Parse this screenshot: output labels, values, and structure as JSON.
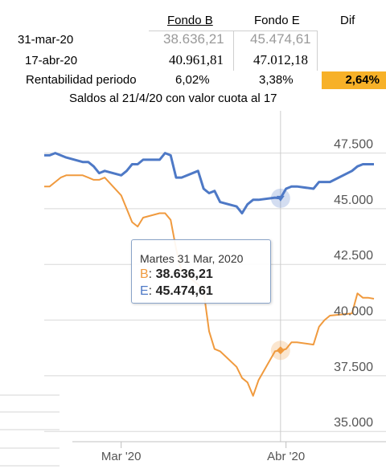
{
  "table": {
    "headers": {
      "fondo_b": "Fondo B",
      "fondo_e": "Fondo E",
      "dif": "Dif"
    },
    "rows": [
      {
        "label": "31-mar-20",
        "fondo_b": "38.636,21",
        "fondo_e": "45.474,61"
      },
      {
        "label": "17-abr-20",
        "fondo_b": "40.961,81",
        "fondo_e": "47.012,18"
      },
      {
        "label": "Rentabilidad periodo",
        "fondo_b": "6,02%",
        "fondo_e": "3,38%",
        "dif": "2,64%"
      }
    ],
    "note": "Saldos al 21/4/20 con valor cuota al 17",
    "colors": {
      "dif_highlight": "#f7b128"
    }
  },
  "tooltip": {
    "date": "Martes 31 Mar, 2020",
    "b_label": "B",
    "b_value": "38.636,21",
    "e_label": "E",
    "e_value": "45.474,61"
  },
  "chart_data": {
    "type": "line",
    "x": [
      "2020-02-17",
      "2020-02-18",
      "2020-02-19",
      "2020-02-20",
      "2020-02-21",
      "2020-02-24",
      "2020-02-25",
      "2020-02-26",
      "2020-02-27",
      "2020-02-28",
      "2020-03-02",
      "2020-03-03",
      "2020-03-04",
      "2020-03-05",
      "2020-03-06",
      "2020-03-09",
      "2020-03-10",
      "2020-03-11",
      "2020-03-12",
      "2020-03-13",
      "2020-03-16",
      "2020-03-17",
      "2020-03-18",
      "2020-03-19",
      "2020-03-20",
      "2020-03-23",
      "2020-03-24",
      "2020-03-25",
      "2020-03-26",
      "2020-03-27",
      "2020-03-30",
      "2020-03-31",
      "2020-04-01",
      "2020-04-02",
      "2020-04-03",
      "2020-04-06",
      "2020-04-07",
      "2020-04-08",
      "2020-04-09",
      "2020-04-13",
      "2020-04-14",
      "2020-04-15",
      "2020-04-16",
      "2020-04-17"
    ],
    "series": [
      {
        "name": "E",
        "color": "#4e79c6",
        "values": [
          47.4,
          47.4,
          47.5,
          47.4,
          47.3,
          47.1,
          47.1,
          46.9,
          46.6,
          46.7,
          46.5,
          46.7,
          47.0,
          47.0,
          47.2,
          47.2,
          47.5,
          47.4,
          46.4,
          46.4,
          46.7,
          45.9,
          45.7,
          45.8,
          45.3,
          45.1,
          44.8,
          45.2,
          45.4,
          45.4,
          45.5,
          45.47,
          45.9,
          46.0,
          46.0,
          45.9,
          46.2,
          46.2,
          46.2,
          46.7,
          46.9,
          47.0,
          47.0,
          47.0
        ]
      },
      {
        "name": "B",
        "color": "#f09a3e",
        "values": [
          46.0,
          46.0,
          46.2,
          46.4,
          46.5,
          46.5,
          46.4,
          46.3,
          46.3,
          46.4,
          45.6,
          45.0,
          44.4,
          44.2,
          44.6,
          44.8,
          44.8,
          44.5,
          43.2,
          42.2,
          41.6,
          41.3,
          39.5,
          38.7,
          38.6,
          37.9,
          37.4,
          37.2,
          36.6,
          37.3,
          38.6,
          38.64,
          38.7,
          39.0,
          39.0,
          38.9,
          39.7,
          40.0,
          40.2,
          40.3,
          41.2,
          41.0,
          41.0,
          40.96
        ]
      }
    ],
    "y_ticks": [
      "47.500",
      "45.000",
      "42.500",
      "40.000",
      "37.500",
      "35.000"
    ],
    "y_tick_values": [
      47.5,
      45.0,
      42.5,
      40.0,
      37.5,
      35.0
    ],
    "ylim": [
      34.9,
      49.0
    ],
    "x_ticks": [
      "Mar '20",
      "Abr '20"
    ],
    "x_tick_dates": [
      "2020-03-02",
      "2020-04-01"
    ],
    "highlight_date": "2020-03-31",
    "grid": true
  }
}
